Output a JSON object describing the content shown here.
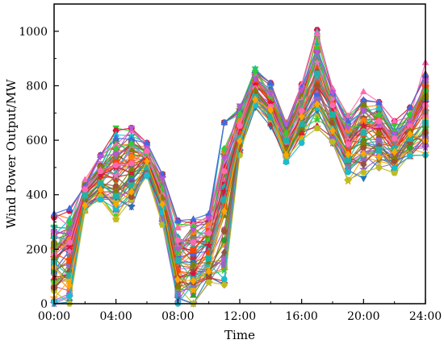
{
  "chart_data": {
    "type": "line",
    "title": "",
    "xlabel": "Time",
    "ylabel": "Wind Power Output/MW",
    "xlim": [
      0,
      24
    ],
    "ylim": [
      0,
      1100
    ],
    "x_tick_values": [
      0,
      4,
      8,
      12,
      16,
      20,
      24
    ],
    "x_tick_labels": [
      "00:00",
      "04:00",
      "08:00",
      "12:00",
      "16:00",
      "20:00",
      "24:00"
    ],
    "y_tick_values": [
      0,
      200,
      400,
      600,
      800,
      1000
    ],
    "y_tick_labels": [
      "0",
      "200",
      "400",
      "600",
      "800",
      "1000"
    ],
    "grid": false,
    "legend": "none",
    "x": [
      0,
      1,
      2,
      3,
      4,
      5,
      6,
      7,
      8,
      9,
      10,
      11,
      12,
      13,
      14,
      15,
      16,
      17,
      18,
      19,
      20,
      21,
      22,
      23,
      24
    ],
    "upper_envelope": [
      330,
      350,
      455,
      545,
      645,
      645,
      590,
      475,
      305,
      310,
      330,
      665,
      735,
      875,
      810,
      665,
      805,
      1005,
      790,
      690,
      795,
      740,
      670,
      720,
      885
    ],
    "lower_envelope": [
      0,
      0,
      340,
      380,
      310,
      355,
      470,
      290,
      0,
      0,
      70,
      70,
      545,
      720,
      650,
      520,
      590,
      640,
      590,
      450,
      460,
      500,
      480,
      540,
      545
    ],
    "series_count": 60,
    "colors": [
      "#1f77b4",
      "#ff7f0e",
      "#2ca02c",
      "#d62728",
      "#9467bd",
      "#8c564b",
      "#e377c2",
      "#7f7f7f",
      "#bcbd22",
      "#17becf",
      "#4169e1",
      "#ff4500",
      "#32cd32",
      "#dc143c",
      "#ba55d3",
      "#a0522d",
      "#ff69b4",
      "#808000",
      "#20b2aa",
      "#ffa500"
    ],
    "markers": [
      "circle",
      "triangle-up",
      "square",
      "diamond",
      "star",
      "triangle-down",
      "hexagon"
    ]
  }
}
